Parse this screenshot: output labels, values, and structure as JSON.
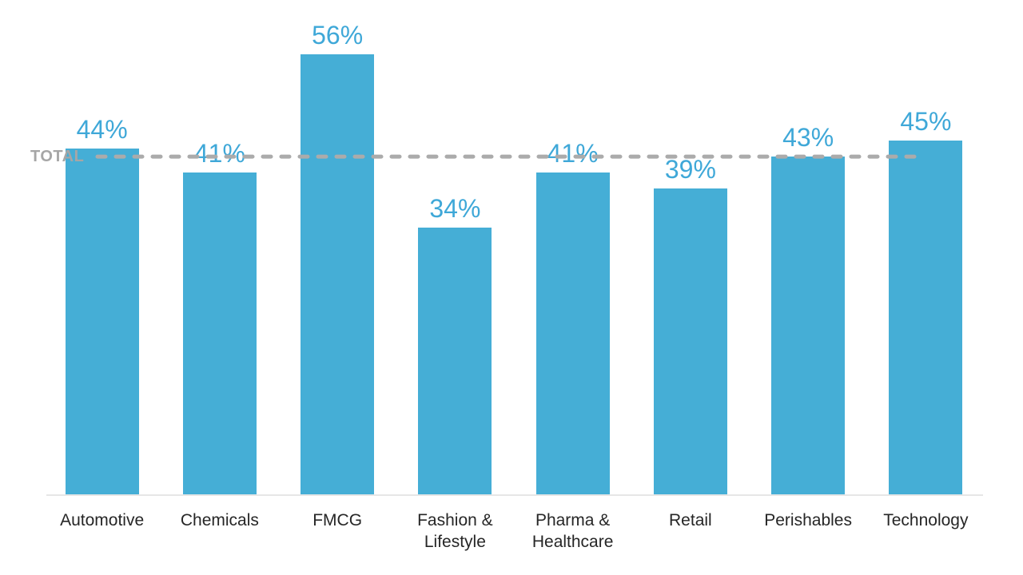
{
  "chart_data": {
    "type": "bar",
    "title": "",
    "xlabel": "",
    "ylabel": "",
    "unit": "%",
    "ylim": [
      0,
      60
    ],
    "grid": false,
    "legend": false,
    "categories": [
      "Automotive",
      "Chemicals",
      "FMCG",
      "Fashion & Lifestyle",
      "Pharma & Healthcare",
      "Retail",
      "Perishables",
      "Technology"
    ],
    "category_labels": [
      "Automotive",
      "Chemicals",
      "FMCG",
      "Fashion &\nLifestyle",
      "Pharma &\nHealthcare",
      "Retail",
      "Perishables",
      "Technology"
    ],
    "values": [
      44,
      41,
      56,
      34,
      41,
      39,
      43,
      45
    ],
    "value_labels": [
      "44%",
      "41%",
      "56%",
      "34%",
      "41%",
      "39%",
      "43%",
      "45%"
    ],
    "reference_line": {
      "label": "TOTAL",
      "value": 43
    },
    "colors": {
      "bar": "#45AED6",
      "value_label": "#3FA8D8",
      "reference_line": "#ABABAB",
      "reference_label": "#A6A6A6",
      "axis_line": "#E6E6E6",
      "category_label": "#262626"
    }
  }
}
